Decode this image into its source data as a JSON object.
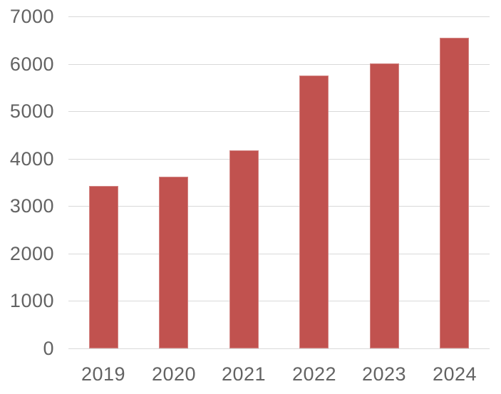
{
  "chart_data": {
    "type": "bar",
    "title": "",
    "xlabel": "",
    "ylabel": "",
    "categories": [
      "2019",
      "2020",
      "2021",
      "2022",
      "2023",
      "2024"
    ],
    "values": [
      3430,
      3620,
      4170,
      5750,
      6010,
      6550
    ],
    "ylim": [
      0,
      7000
    ],
    "yticks": [
      0,
      1000,
      2000,
      3000,
      4000,
      5000,
      6000,
      7000
    ],
    "grid": "horizontal",
    "legend": "none",
    "colors": {
      "bar": "#C1524F",
      "gridline": "#D9D9D9",
      "axis_line": "#D9D9D9",
      "tick_label": "#636363",
      "background": "#FFFFFF"
    }
  }
}
